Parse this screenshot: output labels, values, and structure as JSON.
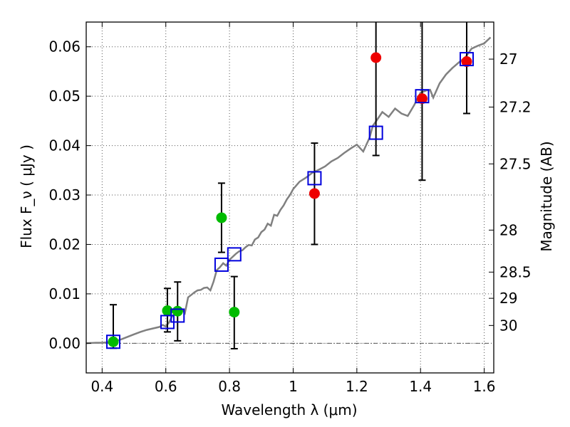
{
  "chart_data": {
    "type": "scatter",
    "xlabel": "Wavelength  λ (μm)",
    "ylabel": "Flux  F_ν  ( μJy )",
    "ylabel_right": "Magnitude (AB)",
    "xlim": [
      0.35,
      1.63
    ],
    "ylim": [
      -0.006,
      0.065
    ],
    "grid": true,
    "x_ticks": [
      {
        "value": 0.4,
        "label": "0.4"
      },
      {
        "value": 0.6,
        "label": "0.6"
      },
      {
        "value": 0.8,
        "label": "0.8"
      },
      {
        "value": 1.0,
        "label": "1"
      },
      {
        "value": 1.2,
        "label": "1.2"
      },
      {
        "value": 1.4,
        "label": "1.4"
      },
      {
        "value": 1.6,
        "label": "1.6"
      }
    ],
    "y_ticks": [
      {
        "value": 0.0,
        "label": "0.00"
      },
      {
        "value": 0.01,
        "label": "0.01"
      },
      {
        "value": 0.02,
        "label": "0.02"
      },
      {
        "value": 0.03,
        "label": "0.03"
      },
      {
        "value": 0.04,
        "label": "0.04"
      },
      {
        "value": 0.05,
        "label": "0.05"
      },
      {
        "value": 0.06,
        "label": "0.06"
      }
    ],
    "right_ticks": [
      {
        "flux": 0.0575,
        "label": "27"
      },
      {
        "flux": 0.0478,
        "label": "27.2"
      },
      {
        "flux": 0.0363,
        "label": "27.5"
      },
      {
        "flux": 0.0229,
        "label": "28"
      },
      {
        "flux": 0.0144,
        "label": "28.5"
      },
      {
        "flux": 0.0091,
        "label": "29"
      },
      {
        "flux": 0.0036,
        "label": "30"
      }
    ],
    "model_spectrum": {
      "x": [
        0.35,
        0.38,
        0.4,
        0.42,
        0.44,
        0.46,
        0.48,
        0.5,
        0.52,
        0.54,
        0.56,
        0.58,
        0.59,
        0.6,
        0.61,
        0.62,
        0.63,
        0.64,
        0.65,
        0.66,
        0.67,
        0.68,
        0.69,
        0.7,
        0.71,
        0.72,
        0.73,
        0.74,
        0.75,
        0.76,
        0.77,
        0.78,
        0.79,
        0.8,
        0.81,
        0.82,
        0.83,
        0.84,
        0.85,
        0.86,
        0.87,
        0.88,
        0.89,
        0.9,
        0.91,
        0.92,
        0.93,
        0.94,
        0.95,
        0.96,
        0.97,
        0.98,
        0.99,
        1.0,
        1.02,
        1.04,
        1.06,
        1.08,
        1.1,
        1.12,
        1.14,
        1.16,
        1.18,
        1.2,
        1.22,
        1.24,
        1.25,
        1.26,
        1.28,
        1.3,
        1.32,
        1.34,
        1.36,
        1.38,
        1.4,
        1.42,
        1.43,
        1.44,
        1.46,
        1.48,
        1.5,
        1.52,
        1.54,
        1.56,
        1.58,
        1.6,
        1.62
      ],
      "y": [
        0.0,
        0.0001,
        0.0001,
        0.0002,
        0.0004,
        0.0008,
        0.0013,
        0.0018,
        0.0023,
        0.0027,
        0.003,
        0.0033,
        0.0037,
        0.0034,
        0.0042,
        0.0055,
        0.0061,
        0.0063,
        0.0069,
        0.0061,
        0.0093,
        0.0098,
        0.0103,
        0.0107,
        0.0108,
        0.0112,
        0.0113,
        0.0107,
        0.0125,
        0.0148,
        0.0154,
        0.0162,
        0.0157,
        0.0169,
        0.0175,
        0.0181,
        0.0186,
        0.0188,
        0.0194,
        0.0199,
        0.0198,
        0.021,
        0.0214,
        0.0225,
        0.023,
        0.0242,
        0.0238,
        0.026,
        0.0258,
        0.027,
        0.0279,
        0.0291,
        0.03,
        0.0312,
        0.0327,
        0.0335,
        0.0345,
        0.0351,
        0.0358,
        0.0368,
        0.0375,
        0.0385,
        0.0394,
        0.0402,
        0.0388,
        0.0416,
        0.044,
        0.0449,
        0.0468,
        0.0458,
        0.0475,
        0.0465,
        0.046,
        0.0482,
        0.0507,
        0.0512,
        0.0513,
        0.0497,
        0.0526,
        0.0544,
        0.0557,
        0.0568,
        0.0578,
        0.0596,
        0.0602,
        0.0607,
        0.0619
      ]
    },
    "series": [
      {
        "marker": "circle",
        "color": "#00bb00",
        "points": [
          {
            "x": 0.435,
            "y": 0.0003,
            "ylo": -0.001,
            "yhi": 0.0078
          },
          {
            "x": 0.605,
            "y": 0.0066,
            "ylo": 0.0023,
            "yhi": 0.0111
          },
          {
            "x": 0.637,
            "y": 0.0065,
            "ylo": 0.0005,
            "yhi": 0.0124
          },
          {
            "x": 0.775,
            "y": 0.0254,
            "ylo": 0.0184,
            "yhi": 0.0324
          },
          {
            "x": 0.815,
            "y": 0.0063,
            "ylo": -0.0011,
            "yhi": 0.0135
          }
        ]
      },
      {
        "marker": "circle",
        "color": "#ee0000",
        "points": [
          {
            "x": 1.067,
            "y": 0.0303,
            "ylo": 0.02,
            "yhi": 0.0405
          },
          {
            "x": 1.26,
            "y": 0.0578,
            "ylo": 0.038,
            "yhi": 0.065
          },
          {
            "x": 1.405,
            "y": 0.0495,
            "ylo": 0.033,
            "yhi": 0.065
          },
          {
            "x": 1.545,
            "y": 0.057,
            "ylo": 0.0465,
            "yhi": 0.065
          }
        ]
      },
      {
        "marker": "square",
        "color": "#0000dd",
        "points": [
          {
            "x": 0.435,
            "y": 0.0003
          },
          {
            "x": 0.605,
            "y": 0.0043
          },
          {
            "x": 0.637,
            "y": 0.0056
          },
          {
            "x": 0.775,
            "y": 0.0159
          },
          {
            "x": 0.815,
            "y": 0.018
          },
          {
            "x": 1.067,
            "y": 0.0334
          },
          {
            "x": 1.26,
            "y": 0.0426
          },
          {
            "x": 1.405,
            "y": 0.05
          },
          {
            "x": 1.545,
            "y": 0.0575
          }
        ]
      }
    ],
    "colors": {
      "spectrum": "#808080",
      "errorbar": "#000000",
      "grid": "#555555"
    }
  }
}
